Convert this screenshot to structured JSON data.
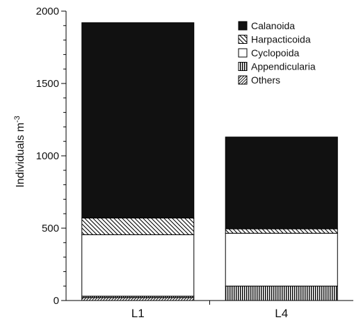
{
  "chart_data": {
    "type": "bar",
    "stacked": true,
    "ylabel": "Individuals m",
    "ylabel_superscript": "-3",
    "ylim": [
      0,
      2000
    ],
    "y_ticks": [
      "0",
      "500",
      "1000",
      "1500",
      "2000"
    ],
    "categories": [
      "L1",
      "L4"
    ],
    "series": [
      {
        "name": "Others",
        "values": [
          20,
          0
        ],
        "pattern": "diag-left"
      },
      {
        "name": "Appendicularia",
        "values": [
          10,
          100
        ],
        "pattern": "vertical"
      },
      {
        "name": "Cyclopoida",
        "values": [
          425,
          365
        ],
        "pattern": "white"
      },
      {
        "name": "Harpacticoida",
        "values": [
          115,
          30
        ],
        "pattern": "diag-right"
      },
      {
        "name": "Calanoida",
        "values": [
          1350,
          635
        ],
        "pattern": "black"
      }
    ],
    "legend_order": [
      "Calanoida",
      "Harpacticoida",
      "Cyclopoida",
      "Appendicularia",
      "Others"
    ],
    "legend_position": "top-right",
    "grid": false
  }
}
